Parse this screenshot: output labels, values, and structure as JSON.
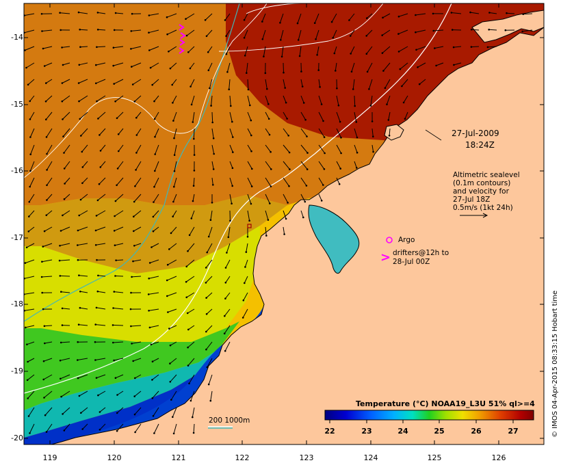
{
  "map": {
    "lon_range": [
      118.6,
      126.7
    ],
    "lat_range": [
      -20.1,
      -13.6
    ],
    "x_ticks": [
      "119",
      "120",
      "121",
      "122",
      "123",
      "124",
      "125",
      "126"
    ],
    "y_ticks": [
      "-14",
      "-15",
      "-16",
      "-17",
      "-18",
      "-19",
      "-20"
    ],
    "land_color": "#fdc79c",
    "date_line1": "27-Jul-2009",
    "date_line2": "18:24Z",
    "altimetry_note": [
      "Altimetric sealevel",
      "(0.1m contours)",
      "and velocity for",
      "27-Jul 18Z",
      "0.5m/s (1kt 24h)"
    ],
    "argo_label": "Argo",
    "drifters_label": [
      "drifters@12h to",
      "28-Jul 00Z"
    ],
    "drifter_symbol": ">",
    "isobath_label": "200  1000m",
    "credit": "© IMOS 04-Apr-2015 08:33:15 Hobart time",
    "argo_color": "#ff00ff",
    "isobath_200_color": "#ffffff",
    "isobath_1000_color": "#40b8b8"
  },
  "colorbar": {
    "title": "Temperature (°C) NOAA19_L3U 51% ql>=4",
    "min": 22,
    "max": 27.6,
    "tick_labels": [
      "22",
      "23",
      "24",
      "25",
      "26",
      "27"
    ]
  }
}
